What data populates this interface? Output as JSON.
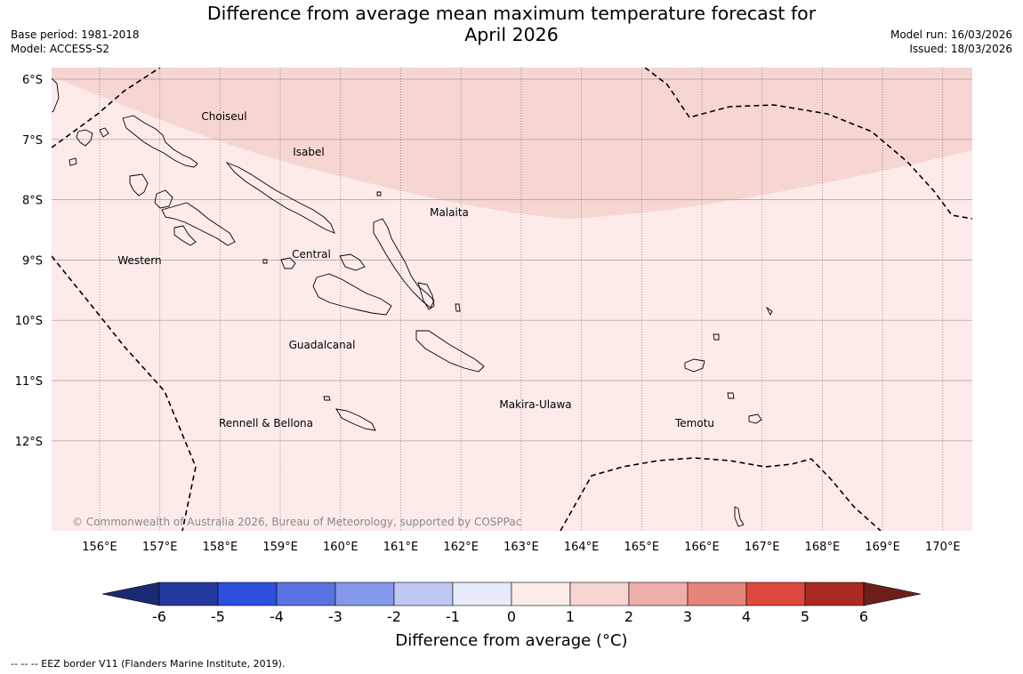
{
  "title_line1": "Difference from average mean maximum temperature forecast for",
  "title_line2": "April 2026",
  "meta_left": {
    "base_period": "Base period: 1981-2018",
    "model": "Model: ACCESS-S2"
  },
  "meta_right": {
    "model_run": "Model run: 16/03/2026",
    "issued": "Issued: 18/03/2026"
  },
  "lat_labels": [
    "6°S",
    "7°S",
    "8°S",
    "9°S",
    "10°S",
    "11°S",
    "12°S"
  ],
  "lon_labels": [
    "156°E",
    "157°E",
    "158°E",
    "159°E",
    "160°E",
    "161°E",
    "162°E",
    "163°E",
    "164°E",
    "165°E",
    "166°E",
    "167°E",
    "168°E",
    "169°E",
    "170°E"
  ],
  "regions": {
    "choiseul": "Choiseul",
    "isabel": "Isabel",
    "malaita": "Malaita",
    "western": "Western",
    "central": "Central",
    "guadalcanal": "Guadalcanal",
    "makira": "Makira-Ulawa",
    "temotu": "Temotu",
    "rennell": "Rennell & Bellona"
  },
  "copyright": "© Commonwealth of Australia 2026, Bureau of Meteorology, supported by COSPPac",
  "colorbar": {
    "title": "Difference from average (°C)",
    "ticks": [
      "-6",
      "-5",
      "-4",
      "-3",
      "-2",
      "-1",
      "0",
      "1",
      "2",
      "3",
      "4",
      "5",
      "6"
    ],
    "colors": [
      "#253a9e",
      "#2d4fde",
      "#5a72e2",
      "#8498eb",
      "#c0c8f4",
      "#e8ebfb",
      "#fcebe9",
      "#f6d5d3",
      "#eeaeaa",
      "#e6837b",
      "#de483e",
      "#ac2a24"
    ],
    "under_color": "#1a2a72",
    "over_color": "#6e1f1a"
  },
  "eez_note": "--  --  -- EEZ border V11 (Flanders Marine Institute, 2019).",
  "fill_colors": {
    "band_0_1": "#fcebe9",
    "band_1_2": "#f6d5d3"
  }
}
